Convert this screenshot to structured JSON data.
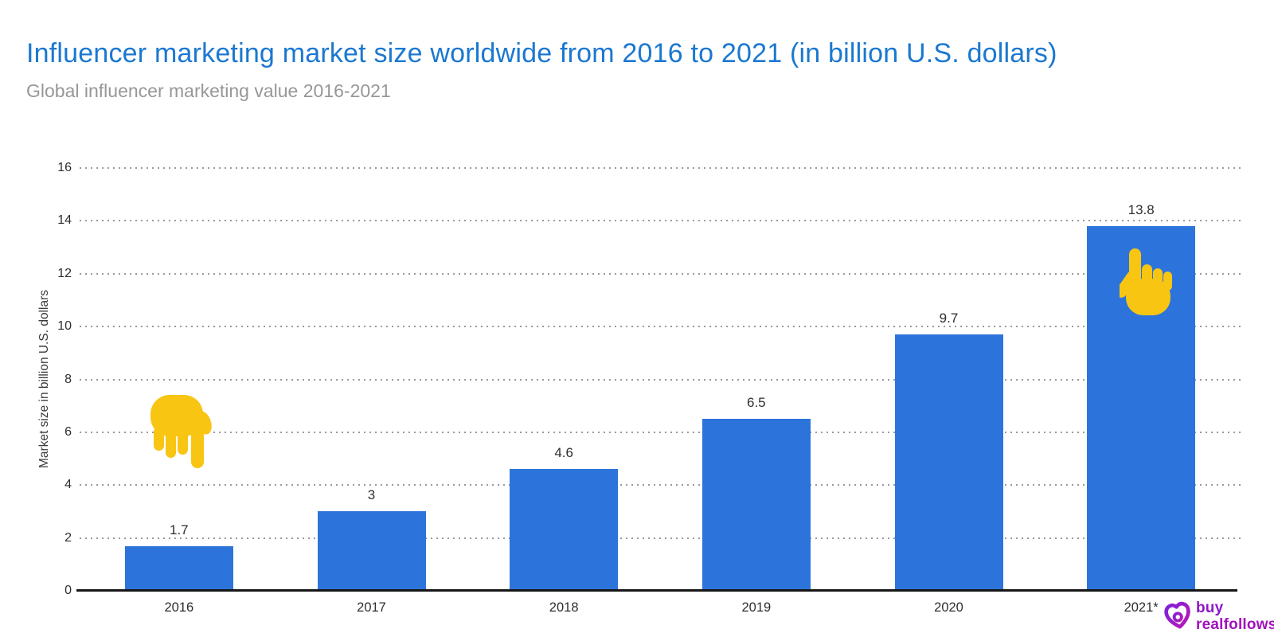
{
  "header": {
    "title": "Influencer marketing market size worldwide from 2016 to 2021 (in billion U.S. dollars)",
    "subtitle": "Global influencer marketing value 2016-2021"
  },
  "chart_data": {
    "type": "bar",
    "title": "Influencer marketing market size worldwide from 2016 to 2021 (in billion U.S. dollars)",
    "subtitle": "Global influencer marketing value 2016-2021",
    "categories": [
      "2016",
      "2017",
      "2018",
      "2019",
      "2020",
      "2021*"
    ],
    "values": [
      1.7,
      3,
      4.6,
      6.5,
      9.7,
      13.8
    ],
    "xlabel": "",
    "ylabel": "Market size in billion U.S. dollars",
    "ylim": [
      0,
      16
    ],
    "ytick_step": 2,
    "grid": "horizontal-dotted",
    "legend": "none",
    "bar_color": "#2C74DB"
  },
  "annotations": {
    "hand_down_icon": "backhand-index-pointing-down-cursor",
    "hand_up_icon": "backhand-index-pointing-up-cursor",
    "hand_color": "#F7C512"
  },
  "branding": {
    "logo_mark": "heart-b-logo",
    "logo_text_line1": "buy",
    "logo_text_line2": "realfollows",
    "logo_text_color_1": "#8E17C6",
    "logo_text_color_2": "#A113BD",
    "gradient_start": "#7E22DC",
    "gradient_end": "#BC16B2"
  },
  "colors": {
    "title": "#1B78D0",
    "subtitle": "#979797",
    "axis_line": "#161616",
    "tick_label": "#2E2E2E",
    "value_label": "#2F2F2F",
    "gridline": "#9A9A9A",
    "y_axis_title": "#3A3A3A",
    "background": "#FFFFFF"
  }
}
